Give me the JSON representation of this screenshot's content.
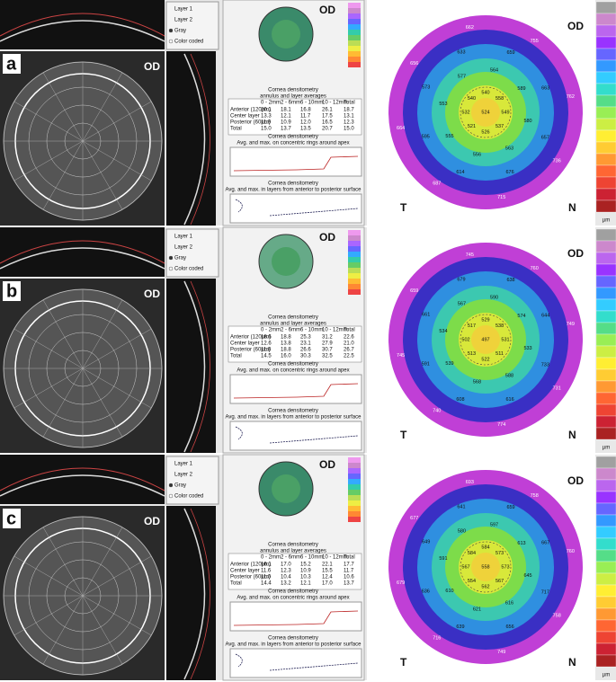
{
  "panels": [
    {
      "label": "a",
      "eye": "OD",
      "table": {
        "rows": [
          [
            "Anterior (120µm)",
            "20.1",
            "18.1",
            "16.8",
            "26.1",
            "18.7"
          ],
          [
            "Center layer",
            "13.3",
            "12.1",
            "11.7",
            "17.5",
            "13.1"
          ],
          [
            "Posterior (60µm)",
            "11.9",
            "10.9",
            "12.0",
            "16.5",
            "12.3"
          ],
          [
            "Total",
            "15.0",
            "13.7",
            "13.5",
            "20.7",
            "15.0"
          ]
        ]
      },
      "pachy": {
        "center": 524,
        "rings": [
          [
            540,
            558,
            549,
            537,
            526,
            521,
            532,
            540
          ],
          [
            564,
            589,
            580,
            563,
            556,
            555,
            553,
            577
          ],
          [
            659,
            663,
            657,
            676,
            614,
            595,
            573,
            633
          ],
          [
            755,
            762,
            736,
            715,
            687,
            664,
            656,
            662
          ]
        ]
      }
    },
    {
      "label": "b",
      "eye": "OD",
      "table": {
        "rows": [
          [
            "Anterior (120µm)",
            "18.6",
            "18.8",
            "25.3",
            "31.2",
            "22.6"
          ],
          [
            "Center layer",
            "12.6",
            "13.8",
            "23.1",
            "27.9",
            "21.0"
          ],
          [
            "Posterior (60µm)",
            "11.8",
            "18.8",
            "26.6",
            "30.7",
            "26.7"
          ],
          [
            "Total",
            "14.5",
            "16.0",
            "30.3",
            "32.5",
            "22.5"
          ]
        ]
      },
      "pachy": {
        "center": 497,
        "rings": [
          [
            529,
            538,
            531,
            511,
            522,
            513,
            502,
            517
          ],
          [
            590,
            574,
            533,
            588,
            568,
            539,
            534,
            567
          ],
          [
            638,
            644,
            733,
            616,
            608,
            591,
            661,
            679
          ],
          [
            760,
            749,
            731,
            774,
            740,
            745,
            659,
            745
          ]
        ]
      }
    },
    {
      "label": "c",
      "eye": "OD",
      "table": {
        "rows": [
          [
            "Anterior (120µm)",
            "16.1",
            "17.0",
            "15.2",
            "22.1",
            "17.7"
          ],
          [
            "Center layer",
            "11.6",
            "12.3",
            "10.9",
            "15.5",
            "11.7"
          ],
          [
            "Posterior (60µm)",
            "11.0",
            "10.4",
            "10.3",
            "12.4",
            "10.6"
          ],
          [
            "Total",
            "14.4",
            "13.2",
            "12.1",
            "17.0",
            "13.7"
          ]
        ]
      },
      "pachy": {
        "center": 558,
        "rings": [
          [
            584,
            573,
            573,
            567,
            562,
            554,
            567,
            584
          ],
          [
            597,
            613,
            645,
            616,
            621,
            610,
            591,
            580
          ],
          [
            659,
            667,
            717,
            656,
            639,
            636,
            649,
            641
          ],
          [
            758,
            760,
            758,
            749,
            716,
            679,
            677,
            693
          ]
        ]
      }
    }
  ],
  "table_headers": [
    "0 - 2mm",
    "2 - 6mm",
    "6 - 10mm",
    "10 - 12mm",
    "Total"
  ],
  "densitometry": {
    "title": "Cornea densitometry",
    "table_caption": "annulus and layer averages",
    "rings_caption": "Avg. and max. on concentric rings around apex",
    "layers_caption": "Avg. and max. in layers from anterior to posterior surface"
  },
  "layer_legend": [
    "Layer 1",
    "Layer 2",
    "Gray",
    "Color coded"
  ],
  "map_labels": {
    "temporal": "T",
    "nasal": "N"
  },
  "scale_unit": "µm"
}
